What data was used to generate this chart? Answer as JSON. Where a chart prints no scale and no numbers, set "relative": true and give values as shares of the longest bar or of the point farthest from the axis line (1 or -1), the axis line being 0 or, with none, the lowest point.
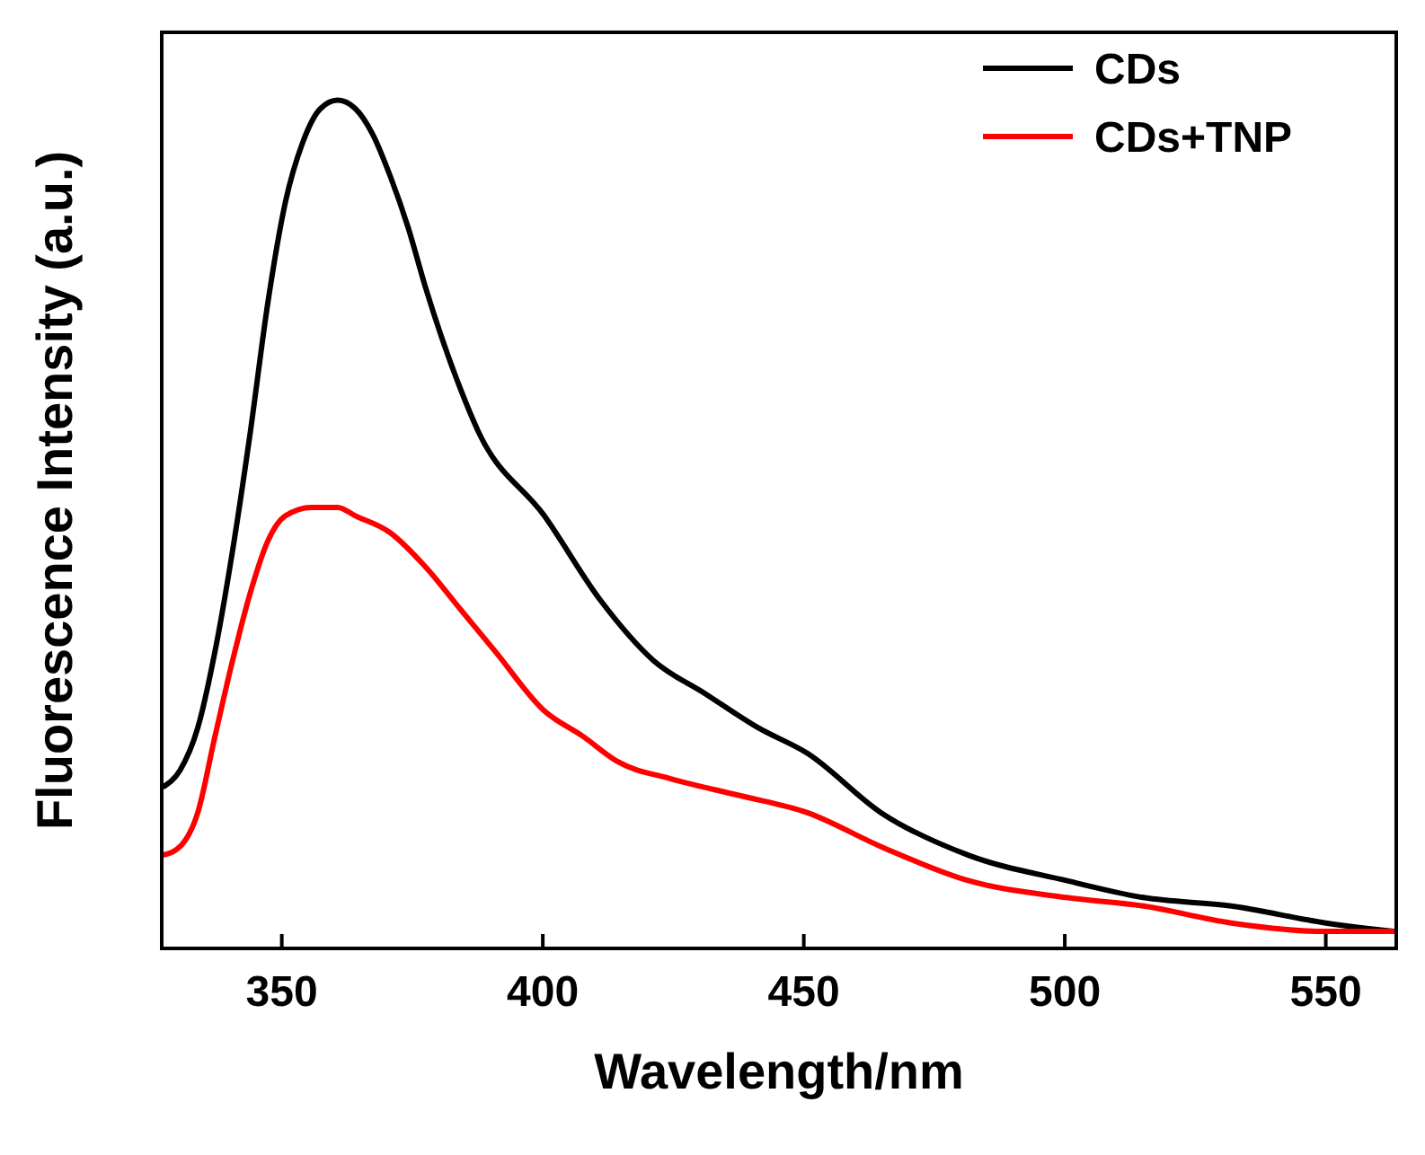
{
  "chart_data": {
    "type": "line",
    "xlabel": "Wavelength/nm",
    "ylabel": "Fluorescence Intensity (a.u.)",
    "relative": true,
    "xlim": [
      327,
      563.5
    ],
    "xticks": [
      350,
      400,
      450,
      500,
      550
    ],
    "legend": "top right",
    "grid": false,
    "series": [
      {
        "name": "CDs",
        "color": "#000000",
        "x": [
          327.2,
          330.5,
          333.9,
          337.2,
          340.6,
          344,
          347.3,
          350.7,
          354,
          357.4,
          360.7,
          364.1,
          367.4,
          370.8,
          374.2,
          377.5,
          384.2,
          387.6,
          400.3,
          411.1,
          421.1,
          431.2,
          441.3,
          450.7,
          464.8,
          481.5,
          500.3,
          515.1,
          531.9,
          550,
          563.1
        ],
        "values": [
          0.19,
          0.21,
          0.26,
          0.35,
          0.47,
          0.61,
          0.76,
          0.88,
          0.95,
          0.99,
          1,
          0.99,
          0.96,
          0.91,
          0.85,
          0.78,
          0.66,
          0.61,
          0.51,
          0.41,
          0.34,
          0.3,
          0.26,
          0.23,
          0.16,
          0.11,
          0.08,
          0.06,
          0.05,
          0.03,
          0.02
        ]
      },
      {
        "name": "CDs+TNP",
        "color": "#ff0000",
        "x": [
          327.2,
          330.5,
          333.9,
          337.2,
          340.6,
          344,
          347.3,
          350.7,
          355.7,
          360.7,
          364.1,
          370.8,
          377.5,
          384.2,
          390.9,
          400.3,
          407.7,
          414.4,
          424.5,
          437.9,
          450.7,
          464.8,
          481.5,
          500.3,
          515.1,
          531.9,
          550,
          563.1
        ],
        "values": [
          0.11,
          0.12,
          0.16,
          0.25,
          0.34,
          0.42,
          0.48,
          0.51,
          0.52,
          0.52,
          0.51,
          0.49,
          0.45,
          0.4,
          0.35,
          0.28,
          0.25,
          0.22,
          0.2,
          0.18,
          0.16,
          0.12,
          0.08,
          0.06,
          0.05,
          0.03,
          0.02,
          0.02
        ]
      }
    ]
  }
}
